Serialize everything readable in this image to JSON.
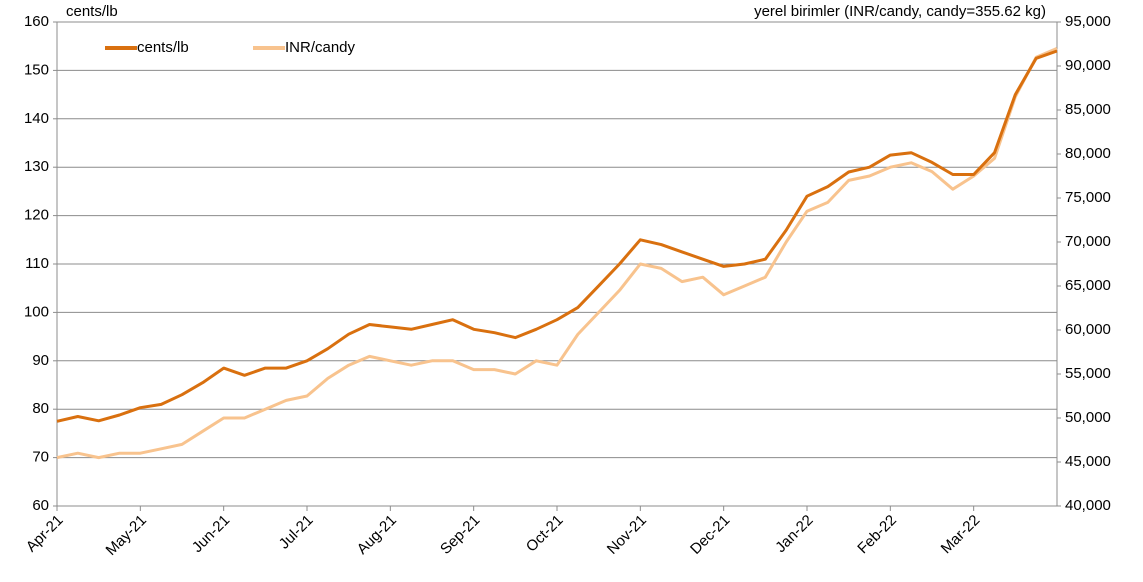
{
  "chart_data": {
    "type": "line",
    "y_label": "cents/lb",
    "y2_label": "yerel birimler (INR/candy, candy=355.62 kg)",
    "categories": [
      "Apr-21",
      null,
      null,
      null,
      "May-21",
      null,
      null,
      null,
      "Jun-21",
      null,
      null,
      null,
      "Jul-21",
      null,
      null,
      null,
      "Aug-21",
      null,
      null,
      null,
      "Sep-21",
      null,
      null,
      null,
      "Oct-21",
      null,
      null,
      null,
      "Nov-21",
      null,
      null,
      null,
      "Dec-21",
      null,
      null,
      null,
      "Jan-22",
      null,
      null,
      null,
      "Feb-22",
      null,
      null,
      null,
      "Mar-22",
      null,
      null,
      null,
      null
    ],
    "series": [
      {
        "name": "cents/lb",
        "color": "#d9700f",
        "values": [
          77.5,
          78.5,
          77.6,
          78.8,
          80.3,
          81,
          83,
          85.5,
          88.5,
          87,
          88.5,
          88.5,
          90,
          92.5,
          95.5,
          97.5,
          97,
          96.5,
          97.5,
          98.5,
          96.5,
          95.8,
          94.8,
          96.5,
          98.5,
          101,
          105.5,
          110,
          115,
          114,
          112.5,
          111,
          109.5,
          110,
          111,
          117,
          124,
          126,
          129,
          130,
          132.5,
          133,
          131,
          128.5,
          128.5,
          133,
          145,
          152.5,
          154
        ]
      },
      {
        "name": "INR/candy",
        "color": "#f8c38e",
        "axis": "y2",
        "values": [
          45500,
          46000,
          45500,
          46000,
          46000,
          46500,
          47000,
          48500,
          50000,
          50000,
          51000,
          52000,
          52500,
          54500,
          56000,
          57000,
          56500,
          56000,
          56500,
          56500,
          55500,
          55500,
          55000,
          56500,
          56000,
          59500,
          62000,
          64500,
          67500,
          67000,
          65500,
          66000,
          64000,
          65000,
          66000,
          70000,
          73500,
          74500,
          77000,
          77500,
          78500,
          79000,
          78000,
          76000,
          77500,
          79500,
          86500,
          91000,
          92000
        ]
      }
    ],
    "ylim": [
      60,
      160
    ],
    "yticks": [
      60,
      70,
      80,
      90,
      100,
      110,
      120,
      130,
      140,
      150,
      160
    ],
    "y2lim": [
      40000,
      95000
    ],
    "y2ticks": [
      {
        "value": 40000,
        "label": "40,000"
      },
      {
        "value": 45000,
        "label": "45,000"
      },
      {
        "value": 50000,
        "label": "50,000"
      },
      {
        "value": 55000,
        "label": "55,000"
      },
      {
        "value": 60000,
        "label": "60,000"
      },
      {
        "value": 65000,
        "label": "65,000"
      },
      {
        "value": 70000,
        "label": "70,000"
      },
      {
        "value": 75000,
        "label": "75,000"
      },
      {
        "value": 80000,
        "label": "80,000"
      },
      {
        "value": 85000,
        "label": "85,000"
      },
      {
        "value": 90000,
        "label": "90,000"
      },
      {
        "value": 95000,
        "label": "95,000"
      }
    ],
    "grid": true,
    "legend": "top-left"
  }
}
